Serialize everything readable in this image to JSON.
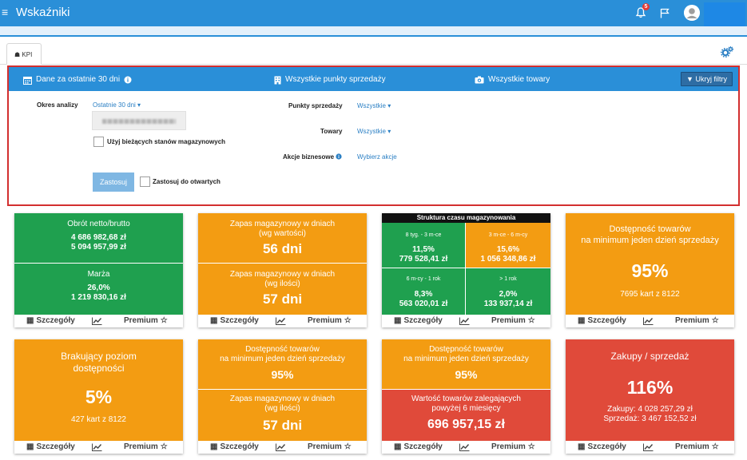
{
  "header": {
    "menu_icon": "hamburger-icon",
    "title": "Wskaźniki",
    "notifications_count": "5",
    "bell_icon": "bell-icon",
    "flag_icon": "flag-icon",
    "avatar_icon": "user-avatar-icon"
  },
  "tab": {
    "label": "KPI",
    "icon": "home-icon"
  },
  "settings_icon": "gears-icon",
  "filter_bar": {
    "period": "Dane za ostatnie 30 dni",
    "points": "Wszystkie punkty sprzedaży",
    "goods": "Wszystkie towary",
    "hide_button": "Ukryj filtry"
  },
  "filters": {
    "period_label": "Okres analizy",
    "period_value": "Ostatnie 30 dni",
    "current_stock_label": "Użyj bieżących stanów magazynowych",
    "points_label": "Punkty sprzedaży",
    "points_value": "Wszystkie",
    "goods_label": "Towary",
    "goods_value": "Wszystkie",
    "actions_label": "Akcje biznesowe",
    "actions_value": "Wybierz akcje",
    "apply_button": "Zastosuj",
    "apply_open_label": "Zastosuj do otwartych"
  },
  "footer": {
    "details": "Szczegóły",
    "premium": "Premium"
  },
  "tiles": {
    "turnover": {
      "title": "Obrót netto/brutto",
      "net": "4 686 982,68 zł",
      "gross": "5 094 957,99 zł",
      "margin_title": "Marża",
      "margin_pct": "26,0%",
      "margin_value": "1 219 830,16 zł"
    },
    "stock_value": {
      "title1": "Zapas magazynowy w dniach",
      "title2": "(wg wartości)",
      "value1": "56 dni",
      "title3": "Zapas magazynowy w dniach",
      "title4": "(wg ilości)",
      "value2": "57 dni"
    },
    "structure": {
      "title": "Struktura czasu magazynowania",
      "q1_label": "8 tyg. - 3 m-ce",
      "q1_pct": "11,5%",
      "q1_val": "779 528,41 zł",
      "q2_label": "3 m-ce - 6 m-cy",
      "q2_pct": "15,6%",
      "q2_val": "1 056 348,86 zł",
      "q3_label": "6 m-cy - 1 rok",
      "q3_pct": "8,3%",
      "q3_val": "563 020,01 zł",
      "q4_label": "> 1 rok",
      "q4_pct": "2,0%",
      "q4_val": "133 937,14 zł"
    },
    "availability": {
      "title1": "Dostępność towarów",
      "title2": "na minimum jeden dzień sprzedaży",
      "value": "95%",
      "sub": "7695 kart z 8122"
    },
    "missing": {
      "title1": "Brakujący poziom",
      "title2": "dostępności",
      "value": "5%",
      "sub": "427 kart z 8122"
    },
    "avail_stock": {
      "title1": "Dostępność towarów",
      "title2": "na minimum jeden dzień sprzedaży",
      "value1": "95%",
      "title3": "Zapas magazynowy w dniach",
      "title4": "(wg ilości)",
      "value2": "57 dni"
    },
    "avail_slow": {
      "title1": "Dostępność towarów",
      "title2": "na minimum jeden dzień sprzedaży",
      "value1": "95%",
      "title3": "Wartość towarów zalegających",
      "title4": "powyżej 6 miesięcy",
      "value2": "696 957,15 zł"
    },
    "purchases": {
      "title": "Zakupy / sprzedaż",
      "value": "116%",
      "line1": "Zakupy: 4 028 257,29 zł",
      "line2": "Sprzedaż: 3 467 152,52 zł"
    }
  }
}
